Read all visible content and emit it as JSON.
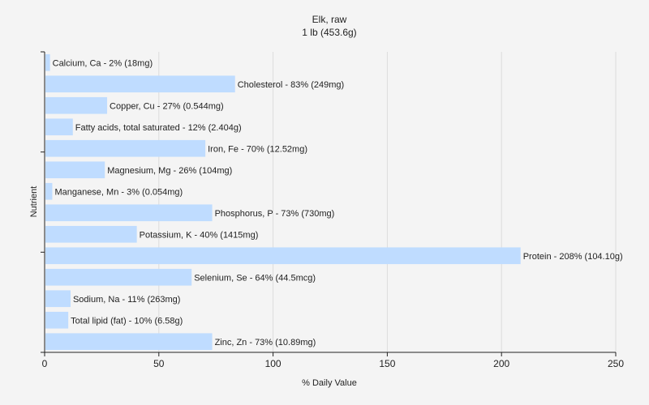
{
  "chart_data": {
    "type": "bar",
    "orientation": "horizontal",
    "title": "Elk, raw",
    "subtitle": "1 lb (453.6g)",
    "xlabel": "% Daily Value",
    "ylabel": "Nutrient",
    "xlim": [
      0,
      250
    ],
    "xticks": [
      "0",
      "50",
      "100",
      "150",
      "200",
      "250"
    ],
    "grid": "vertical",
    "bar_color": "#bfdcff",
    "categories": [
      "Calcium, Ca",
      "Cholesterol",
      "Copper, Cu",
      "Fatty acids, total saturated",
      "Iron, Fe",
      "Magnesium, Mg",
      "Manganese, Mn",
      "Phosphorus, P",
      "Potassium, K",
      "Protein",
      "Selenium, Se",
      "Sodium, Na",
      "Total lipid (fat)",
      "Zinc, Zn"
    ],
    "values": [
      2,
      83,
      27,
      12,
      70,
      26,
      3,
      73,
      40,
      208,
      64,
      11,
      10,
      73
    ],
    "labels": [
      "Calcium, Ca - 2% (18mg)",
      "Cholesterol - 83% (249mg)",
      "Copper, Cu - 27% (0.544mg)",
      "Fatty acids, total saturated - 12% (2.404g)",
      "Iron, Fe - 70% (12.52mg)",
      "Magnesium, Mg - 26% (104mg)",
      "Manganese, Mn - 3% (0.054mg)",
      "Phosphorus, P - 73% (730mg)",
      "Potassium, K - 40% (1415mg)",
      "Protein - 208% (104.10g)",
      "Selenium, Se - 64% (44.5mcg)",
      "Sodium, Na - 11% (263mg)",
      "Total lipid (fat) - 10% (6.58g)",
      "Zinc, Zn - 73% (10.89mg)"
    ]
  }
}
